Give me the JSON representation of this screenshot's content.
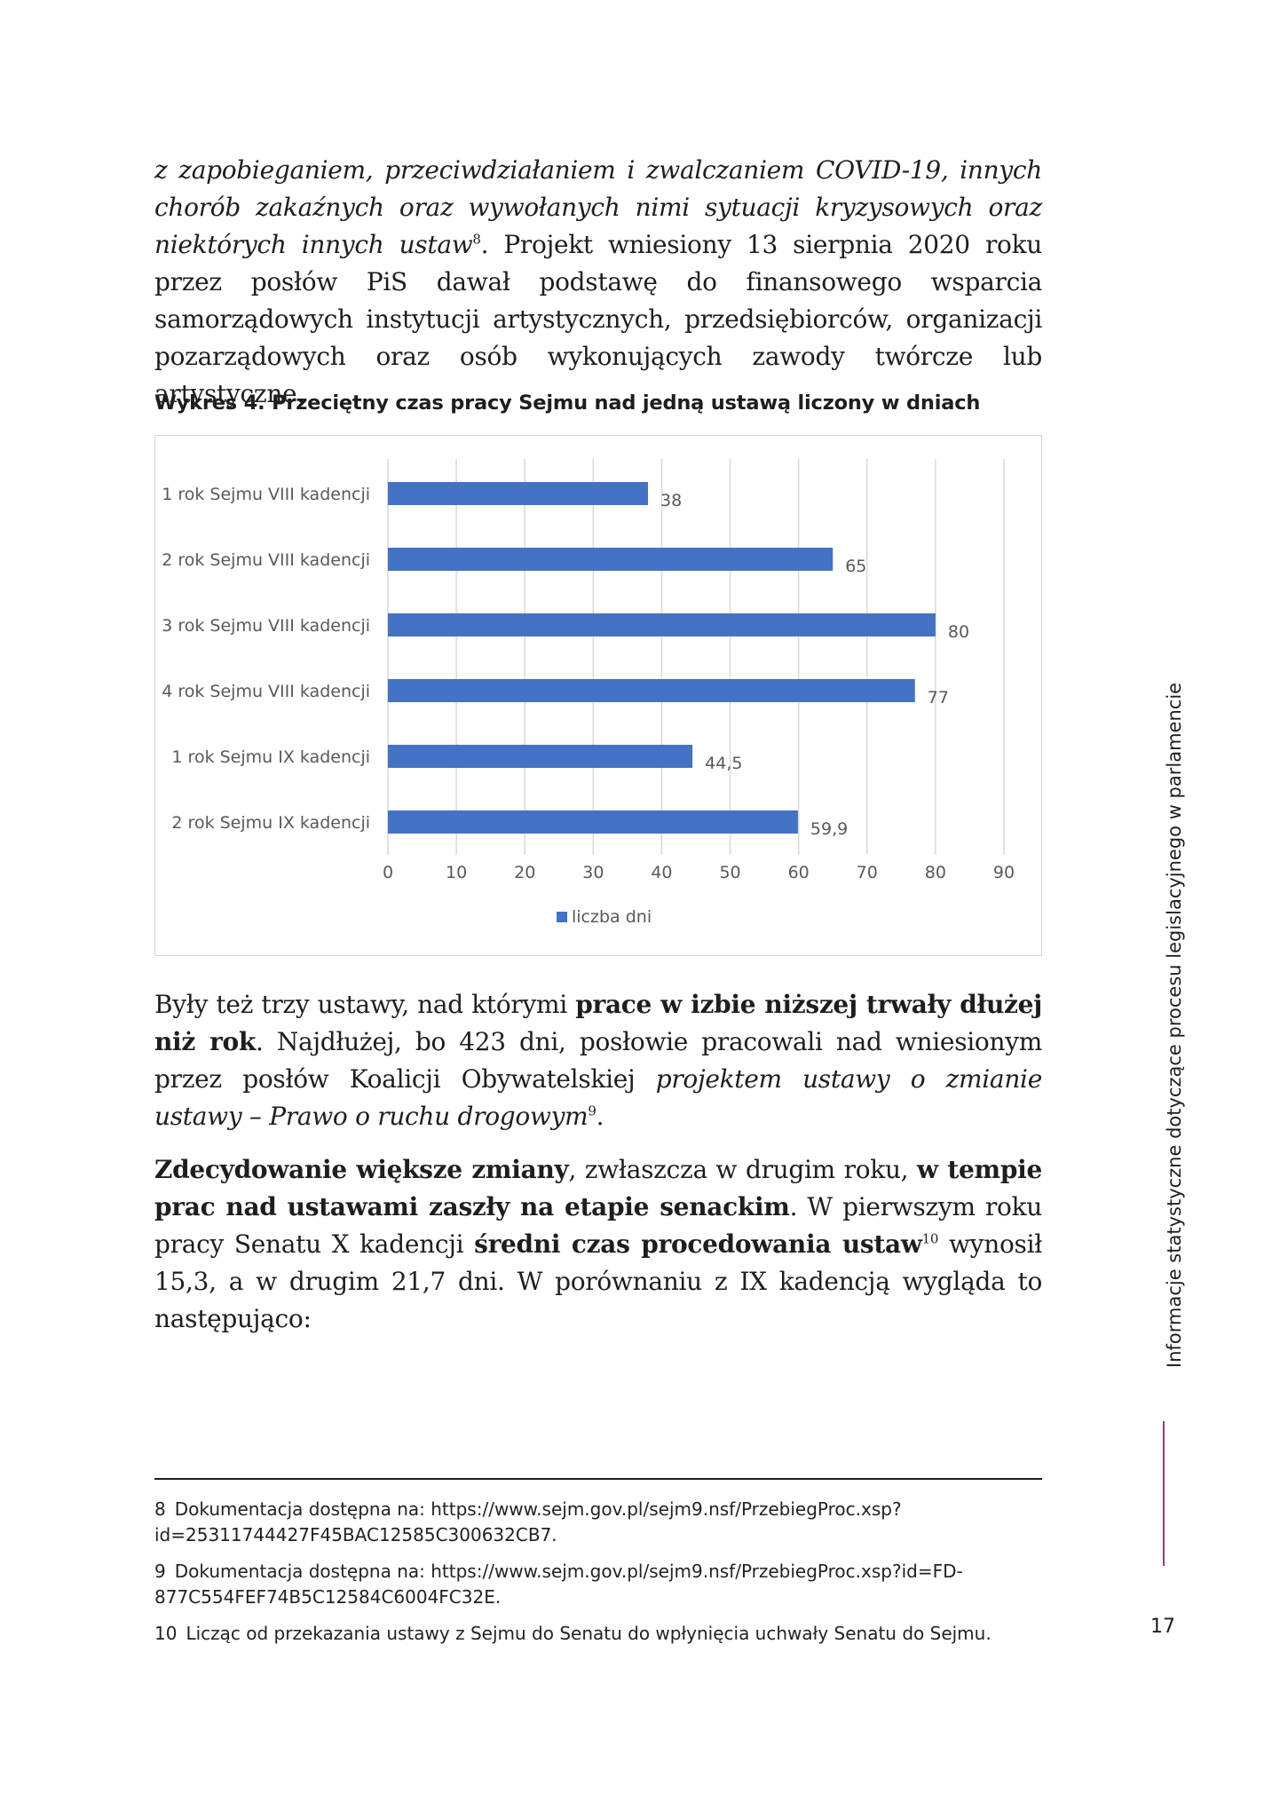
{
  "paragraph1": {
    "italic_start": "z zapobieganiem, przeciwdziałaniem i zwalczaniem COVID-19, innych chorób zakaźnych oraz wywołanych nimi sytuacji kryzysowych oraz niektórych innych ustaw",
    "fn_ref": "8",
    "rest": ". Projekt wniesiony 13 sierpnia 2020 roku przez posłów PiS dawał podstawę do finansowego wsparcia samorządowych instytucji artystycznych, przedsiębiorców, organizacji pozarządowych oraz osób wykonujących zawody twórcze lub artystyczne."
  },
  "chart_caption": "Wykres 4. Przeciętny czas pracy Sejmu nad jedną ustawą liczony w dniach",
  "chart_data": {
    "type": "bar",
    "orientation": "horizontal",
    "categories": [
      "1 rok Sejmu VIII kadencji",
      "2 rok Sejmu VIII kadencji",
      "3 rok Sejmu VIII kadencji",
      "4 rok Sejmu VIII kadencji",
      "1 rok Sejmu IX kadencji",
      "2 rok Sejmu IX kadencji"
    ],
    "series": [
      {
        "name": "liczba dni",
        "values": [
          38,
          65,
          80,
          77,
          44.5,
          59.9
        ],
        "color": "#4472c4"
      }
    ],
    "data_labels": [
      "38",
      "65",
      "80",
      "77",
      "44,5",
      "59,9"
    ],
    "xlim": [
      0,
      90
    ],
    "x_ticks": [
      "0",
      "10",
      "20",
      "30",
      "40",
      "50",
      "60",
      "70",
      "80",
      "90"
    ],
    "grid": "vertical",
    "legend": "bottom",
    "title": "",
    "xlabel": "",
    "ylabel": ""
  },
  "paragraph2": {
    "t1": "Były też trzy ustawy, nad którymi ",
    "b1": "prace w izbie niższej trwały dłużej niż rok",
    "t2": ". Najdłużej, bo 423 dni, posłowie pracowali nad wniesionym przez posłów Koalicji Obywatelskiej ",
    "i1": "projektem ustawy o zmianie ustawy – Prawo o ruchu drogowym",
    "fn_ref": "9",
    "t3": "."
  },
  "paragraph3": {
    "b1": "Zdecydowanie większe zmiany",
    "t1": ", zwłaszcza w drugim roku, ",
    "b2": "w tempie prac nad ustawami zaszły na etapie senackim",
    "t2": ". W pierwszym roku pracy Senatu X kadencji ",
    "b3": "średni czas procedowania ustaw",
    "fn_ref": "10",
    "t3": " wynosił 15,3, a w drugim 21,7 dni. W porównaniu z IX kadencją wygląda to następująco:"
  },
  "footnotes": [
    {
      "num": "8",
      "text": "Dokumentacja dostępna na: https://www.sejm.gov.pl/sejm9.nsf/PrzebiegProc.xsp?id=25311744427F45BAC12585C300632CB7."
    },
    {
      "num": "9",
      "text": "Dokumentacja dostępna na: https://www.sejm.gov.pl/sejm9.nsf/PrzebiegProc.xsp?id=FD-877C554FEF74B5C12584C6004FC32E."
    },
    {
      "num": "10",
      "text": "Licząc od przekazania ustawy z Sejmu do Senatu do wpłynięcia uchwały Senatu do Sejmu."
    }
  ],
  "side_title": "Informacje statystyczne dotyczące procesu legislacyjnego w parlamencie",
  "page_number": "17",
  "colors": {
    "accent_rule": "#8a3e8c",
    "bar": "#4472c4"
  }
}
